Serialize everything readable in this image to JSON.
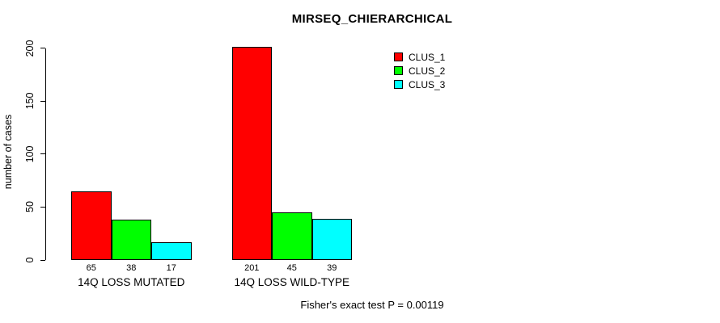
{
  "chart_data": {
    "type": "bar",
    "title": "MIRSEQ_CHIERARCHICAL",
    "ylabel": "number of cases",
    "xlabel": "",
    "categories": [
      "14Q LOSS MUTATED",
      "14Q LOSS WILD-TYPE"
    ],
    "series": [
      {
        "name": "CLUS_1",
        "color": "#FF0000",
        "values": [
          65,
          201
        ]
      },
      {
        "name": "CLUS_2",
        "color": "#00FF00",
        "values": [
          38,
          45
        ]
      },
      {
        "name": "CLUS_3",
        "color": "#00FFFF",
        "values": [
          17,
          39
        ]
      }
    ],
    "yticks": [
      0,
      50,
      100,
      150,
      200
    ],
    "ylim": [
      0,
      200
    ],
    "grid": false,
    "legend_position": "top-right",
    "bar_border_color": "#000000",
    "background": "#FFFFFF",
    "annotation": "Fisher's exact test P = 0.00119"
  }
}
